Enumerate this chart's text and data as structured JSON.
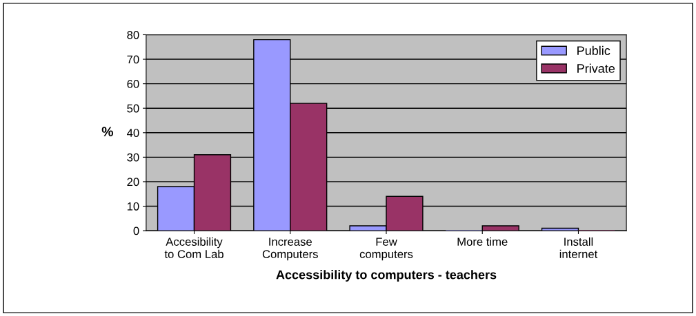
{
  "chart_data": {
    "type": "bar",
    "xlabel": "Accessibility to computers - teachers",
    "ylabel": "%",
    "categories": [
      "Accesibility\nto Com Lab",
      "Increase\nComputers",
      "Few\ncomputers",
      "More time",
      "Install\ninternet"
    ],
    "series": [
      {
        "name": "Public",
        "color": "#9999ff",
        "values": [
          18,
          78,
          2,
          0,
          1
        ]
      },
      {
        "name": "Private",
        "color": "#993366",
        "values": [
          31,
          52,
          14,
          2,
          0
        ]
      }
    ],
    "ylim": [
      0,
      80
    ],
    "yticks": [
      0,
      10,
      20,
      30,
      40,
      50,
      60,
      70,
      80
    ],
    "grid": "y",
    "legend": "top right"
  }
}
